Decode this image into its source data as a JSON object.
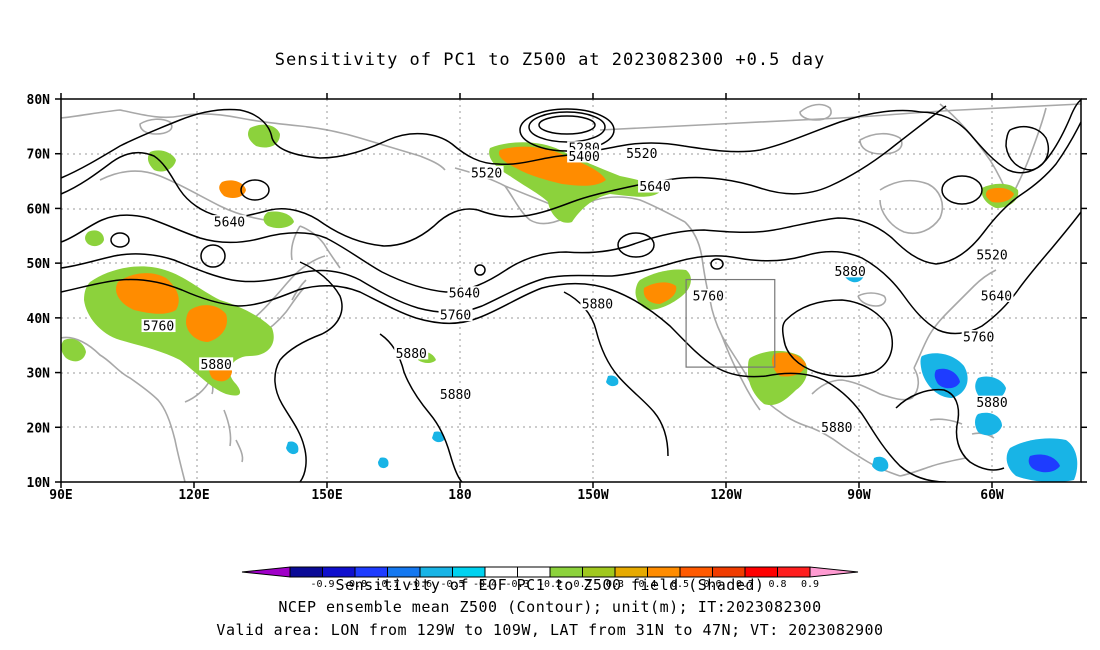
{
  "title": "Sensitivity of PC1 to Z500 at 2023082300 +0.5 day",
  "lat_labels": [
    "80N",
    "70N",
    "60N",
    "50N",
    "40N",
    "30N",
    "20N",
    "10N"
  ],
  "lon_labels": [
    "90E",
    "120E",
    "150E",
    "180",
    "150W",
    "120W",
    "90W",
    "60W"
  ],
  "contour_labels": [
    {
      "text": "5280",
      "lon": -152,
      "lat": 71
    },
    {
      "text": "5400",
      "lon": -152,
      "lat": 69.5
    },
    {
      "text": "5520",
      "lon": -174,
      "lat": 66.5
    },
    {
      "text": "5520",
      "lon": -139,
      "lat": 70
    },
    {
      "text": "5640",
      "lon": -136,
      "lat": 64
    },
    {
      "text": "5640",
      "lon": 128,
      "lat": 57.5
    },
    {
      "text": "5640",
      "lon": -179,
      "lat": 44.5
    },
    {
      "text": "5760",
      "lon": -124,
      "lat": 44
    },
    {
      "text": "5760",
      "lon": 112,
      "lat": 38.5
    },
    {
      "text": "5760",
      "lon": -181,
      "lat": 40.5
    },
    {
      "text": "5880",
      "lon": -92,
      "lat": 48.5
    },
    {
      "text": "5880",
      "lon": -149,
      "lat": 42.5
    },
    {
      "text": "5880",
      "lon": -191,
      "lat": 33.5
    },
    {
      "text": "5880",
      "lon": -181,
      "lat": 26
    },
    {
      "text": "5880",
      "lon": 125,
      "lat": 31.5
    },
    {
      "text": "5880",
      "lon": -95,
      "lat": 20
    },
    {
      "text": "5880",
      "lon": -60,
      "lat": 24.5
    },
    {
      "text": "5520",
      "lon": -60,
      "lat": 51.5
    },
    {
      "text": "5640",
      "lon": -59,
      "lat": 44
    },
    {
      "text": "5760",
      "lon": -63,
      "lat": 36.5
    }
  ],
  "valid_box": {
    "lon_min": -129,
    "lon_max": -109,
    "lat_min": 31,
    "lat_max": 47
  },
  "colorbar": {
    "ticks": [
      "-0.9",
      "-0.8",
      "-0.7",
      "-0.6",
      "-0.5",
      "-0.4",
      "-0.3",
      "-0.2",
      "0.2",
      "0.3",
      "0.4",
      "0.5",
      "0.6",
      "0.7",
      "0.8",
      "0.9"
    ],
    "colors": [
      "#a000c8",
      "#0a0a96",
      "#0f0fcd",
      "#1e3cff",
      "#1478f0",
      "#18b4e6",
      "#00d2f0",
      "#ffffff",
      "#ffffff",
      "#8cd23c",
      "#a0c81e",
      "#e6aa00",
      "#ff8c00",
      "#ff5a00",
      "#f03c00",
      "#ff0000",
      "#ff1e1e",
      "#ff9bd2"
    ]
  },
  "footer": {
    "line1": "Sensitivity of EOF PC1 to Z500 field (Shaded)",
    "line2": "NCEP ensemble mean Z500 (Contour); unit(m); IT:2023082300",
    "line3": "Valid area: LON from 129W to 109W, LAT from 31N to 47N; VT: 2023082900"
  }
}
